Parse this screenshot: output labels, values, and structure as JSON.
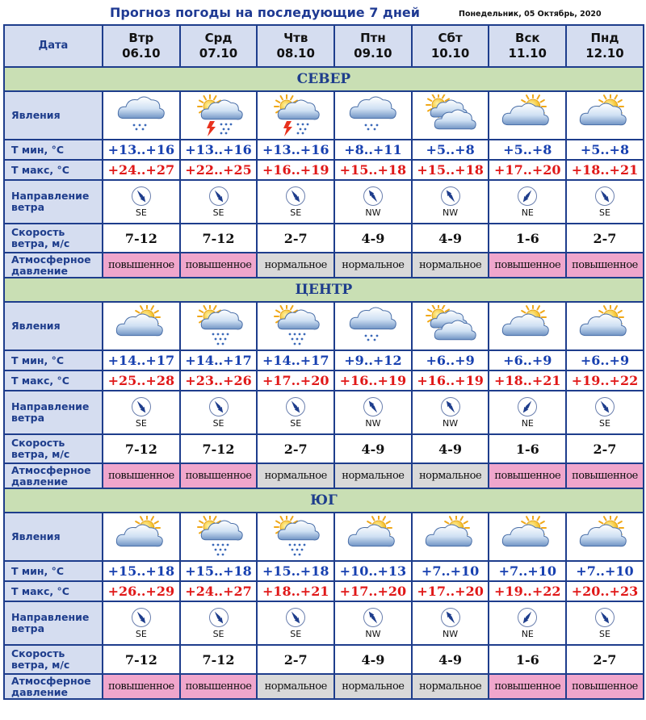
{
  "title": "Прогноз погоды на последующие 7 дней",
  "date": "Понедельник, 05 Октябрь, 2020",
  "header": {
    "date_label": "Дата",
    "days": [
      {
        "name": "Втр",
        "date": "06.10"
      },
      {
        "name": "Срд",
        "date": "07.10"
      },
      {
        "name": "Чтв",
        "date": "08.10"
      },
      {
        "name": "Птн",
        "date": "09.10"
      },
      {
        "name": "Сбт",
        "date": "10.10"
      },
      {
        "name": "Вск",
        "date": "11.10"
      },
      {
        "name": "Пнд",
        "date": "12.10"
      }
    ]
  },
  "row_labels": {
    "phenomena": "Явления",
    "tmin": "Т мин, °С",
    "tmax": "Т макс, °С",
    "wind_dir_1": "Направление",
    "wind_dir_2": "ветра",
    "wind_speed_1": "Скорость",
    "wind_speed_2": "ветра, м/с",
    "pressure_1": "Атмосферное",
    "pressure_2": "давление"
  },
  "colors": {
    "border": "#1e3d8c",
    "header_bg": "#d5ddf0",
    "region_bg": "#c9dfb4",
    "tmin": "#1740b0",
    "tmax": "#e01818",
    "pressure_high": "#f0a6cc",
    "pressure_normal": "#d9d9d9"
  },
  "regions": [
    {
      "name": "СЕВЕР",
      "icons": [
        "cloud-light-snow-icon",
        "partly-sunny-thunderstorm-icon",
        "partly-sunny-thunderstorm-icon",
        "cloud-light-snow-icon",
        "sun-heavy-clouds-icon",
        "sun-cloud-icon",
        "sun-cloud-icon"
      ],
      "tmin": [
        "+13..+16",
        "+13..+16",
        "+13..+16",
        "+8..+11",
        "+5..+8",
        "+5..+8",
        "+5..+8"
      ],
      "tmax": [
        "+24..+27",
        "+22..+25",
        "+16..+19",
        "+15..+18",
        "+15..+18",
        "+17..+20",
        "+18..+21"
      ],
      "wind_dir": [
        "SE",
        "SE",
        "SE",
        "NW",
        "NW",
        "NE",
        "SE"
      ],
      "wind_speed": [
        "7-12",
        "7-12",
        "2-7",
        "4-9",
        "4-9",
        "1-6",
        "2-7"
      ],
      "pressure": [
        "повышенное",
        "повышенное",
        "нормальное",
        "нормальное",
        "нормальное",
        "повышенное",
        "повышенное"
      ]
    },
    {
      "name": "ЦЕНТР",
      "icons": [
        "sun-cloud-icon",
        "partly-sunny-rain-icon",
        "partly-sunny-rain-icon",
        "cloud-light-snow-icon",
        "sun-heavy-clouds-icon",
        "sun-cloud-icon",
        "sun-cloud-icon"
      ],
      "tmin": [
        "+14..+17",
        "+14..+17",
        "+14..+17",
        "+9..+12",
        "+6..+9",
        "+6..+9",
        "+6..+9"
      ],
      "tmax": [
        "+25..+28",
        "+23..+26",
        "+17..+20",
        "+16..+19",
        "+16..+19",
        "+18..+21",
        "+19..+22"
      ],
      "wind_dir": [
        "SE",
        "SE",
        "SE",
        "NW",
        "NW",
        "NE",
        "SE"
      ],
      "wind_speed": [
        "7-12",
        "7-12",
        "2-7",
        "4-9",
        "4-9",
        "1-6",
        "2-7"
      ],
      "pressure": [
        "повышенное",
        "повышенное",
        "нормальное",
        "нормальное",
        "нормальное",
        "повышенное",
        "повышенное"
      ]
    },
    {
      "name": "ЮГ",
      "icons": [
        "sun-cloud-icon",
        "partly-sunny-rain-icon",
        "partly-sunny-rain-icon",
        "sun-cloud-icon",
        "sun-cloud-icon",
        "sun-cloud-icon",
        "sun-cloud-icon"
      ],
      "tmin": [
        "+15..+18",
        "+15..+18",
        "+15..+18",
        "+10..+13",
        "+7..+10",
        "+7..+10",
        "+7..+10"
      ],
      "tmax": [
        "+26..+29",
        "+24..+27",
        "+18..+21",
        "+17..+20",
        "+17..+20",
        "+19..+22",
        "+20..+23"
      ],
      "wind_dir": [
        "SE",
        "SE",
        "SE",
        "NW",
        "NW",
        "NE",
        "SE"
      ],
      "wind_speed": [
        "7-12",
        "7-12",
        "2-7",
        "4-9",
        "4-9",
        "1-6",
        "2-7"
      ],
      "pressure": [
        "повышенное",
        "повышенное",
        "нормальное",
        "нормальное",
        "нормальное",
        "повышенное",
        "повышенное"
      ]
    }
  ]
}
